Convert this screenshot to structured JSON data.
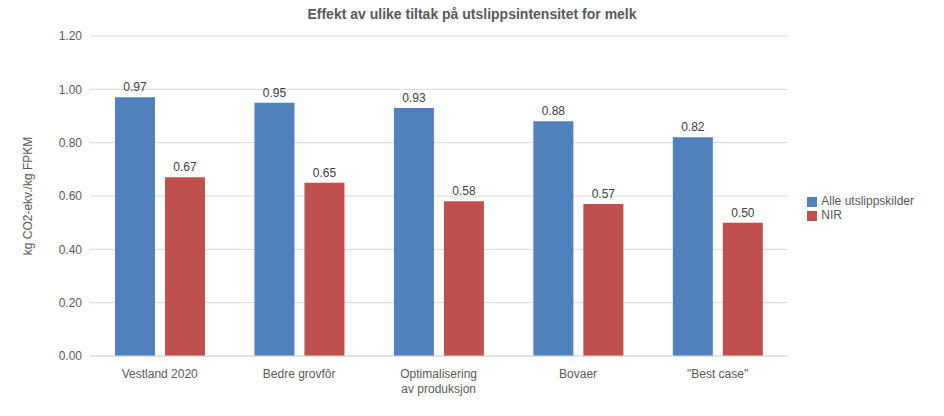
{
  "chart_data": {
    "type": "bar",
    "title": "Effekt av ulike tiltak på utslippsintensitet for melk",
    "y_label": "kg CO2-ekv./kg FPKM",
    "categories": [
      "Vestland 2020",
      "Bedre grovfôr",
      "Optimalisering av produksjon",
      "Bovaer",
      "\"Best case\""
    ],
    "series": [
      {
        "name": "Alle utslippskilder",
        "color": "#4f81bd",
        "values": [
          0.97,
          0.95,
          0.93,
          0.88,
          0.82
        ],
        "value_labels": [
          "0.97",
          "0.95",
          "0.93",
          "0.88",
          "0.82"
        ]
      },
      {
        "name": "NIR",
        "color": "#c0504d",
        "values": [
          0.67,
          0.65,
          0.58,
          0.57,
          0.5
        ],
        "value_labels": [
          "0.67",
          "0.65",
          "0.58",
          "0.57",
          "0.50"
        ]
      }
    ],
    "ylim": [
      0,
      1.2
    ],
    "yticks": [
      {
        "value": 0,
        "label": "0.00"
      },
      {
        "value": 0.2,
        "label": "0.20"
      },
      {
        "value": 0.4,
        "label": "0.40"
      },
      {
        "value": 0.6,
        "label": "0.60"
      },
      {
        "value": 0.8,
        "label": "0.80"
      },
      {
        "value": 1,
        "label": "1.00"
      },
      {
        "value": 1.2,
        "label": "1.20"
      }
    ],
    "grid": true,
    "legend": "right",
    "data_labels": true
  }
}
